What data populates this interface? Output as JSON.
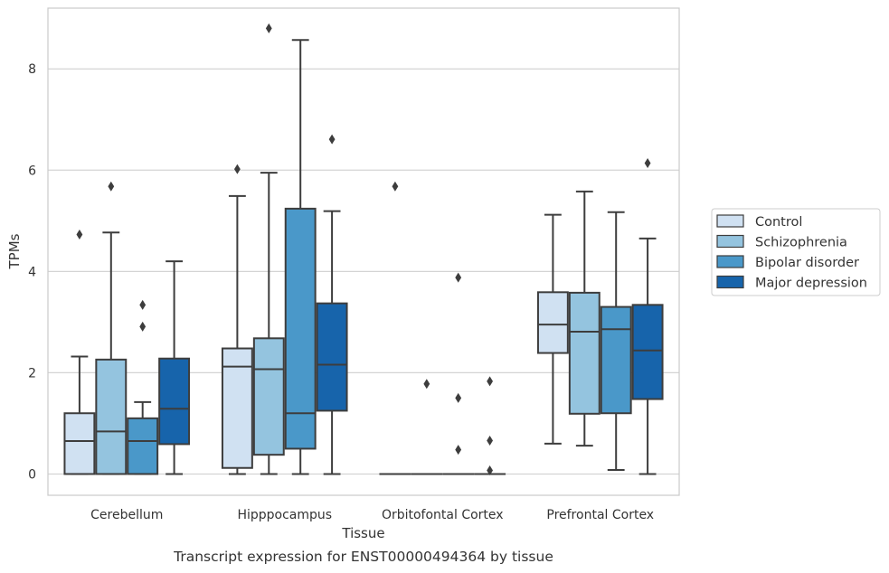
{
  "chart_data": {
    "type": "box",
    "title": "",
    "caption": "Transcript expression for ENST00000494364 by tissue",
    "xlabel": "Tissue",
    "ylabel": "TPMs",
    "ylim": [
      -0.42,
      9.2
    ],
    "yticks": [
      0,
      2,
      4,
      6,
      8
    ],
    "grid": "horizontal",
    "legend_position": "right",
    "categories": [
      "Cerebellum",
      "Hipppocampus",
      "Orbitofontal Cortex",
      "Prefrontal Cortex"
    ],
    "series": [
      {
        "name": "Control",
        "color": "#d0e1f2",
        "boxes": [
          {
            "whislo": 0,
            "q1": 0,
            "med": 0.65,
            "q3": 1.2,
            "whishi": 2.32,
            "fliers": [
              4.73
            ]
          },
          {
            "whislo": 0,
            "q1": 0.12,
            "med": 2.12,
            "q3": 2.48,
            "whishi": 5.49,
            "fliers": [
              6.02
            ]
          },
          {
            "whislo": 0,
            "q1": 0,
            "med": 0,
            "q3": 0,
            "whishi": 0,
            "fliers": [
              5.68
            ]
          },
          {
            "whislo": 0.6,
            "q1": 2.39,
            "med": 2.95,
            "q3": 3.59,
            "whishi": 5.12,
            "fliers": []
          }
        ]
      },
      {
        "name": "Schizophrenia",
        "color": "#94c4df",
        "boxes": [
          {
            "whislo": 0,
            "q1": 0,
            "med": 0.84,
            "q3": 2.26,
            "whishi": 4.77,
            "fliers": [
              5.68
            ]
          },
          {
            "whislo": 0,
            "q1": 0.38,
            "med": 2.07,
            "q3": 2.68,
            "whishi": 5.95,
            "fliers": [
              8.8
            ]
          },
          {
            "whislo": 0,
            "q1": 0,
            "med": 0,
            "q3": 0,
            "whishi": 0,
            "fliers": [
              1.78
            ]
          },
          {
            "whislo": 0.56,
            "q1": 1.19,
            "med": 2.81,
            "q3": 3.58,
            "whishi": 5.58,
            "fliers": []
          }
        ]
      },
      {
        "name": "Bipolar disorder",
        "color": "#4a98c9",
        "boxes": [
          {
            "whislo": 0,
            "q1": 0,
            "med": 0.65,
            "q3": 1.1,
            "whishi": 1.42,
            "fliers": [
              2.91,
              3.34
            ]
          },
          {
            "whislo": 0,
            "q1": 0.5,
            "med": 1.2,
            "q3": 5.24,
            "whishi": 8.57,
            "fliers": []
          },
          {
            "whislo": 0,
            "q1": 0,
            "med": 0,
            "q3": 0,
            "whishi": 0,
            "fliers": [
              0.48,
              1.5,
              3.88
            ]
          },
          {
            "whislo": 0.08,
            "q1": 1.2,
            "med": 2.86,
            "q3": 3.3,
            "whishi": 5.17,
            "fliers": []
          }
        ]
      },
      {
        "name": "Major depression",
        "color": "#1764ab",
        "boxes": [
          {
            "whislo": 0,
            "q1": 0.59,
            "med": 1.29,
            "q3": 2.28,
            "whishi": 4.2,
            "fliers": []
          },
          {
            "whislo": 0,
            "q1": 1.25,
            "med": 2.16,
            "q3": 3.37,
            "whishi": 5.19,
            "fliers": [
              6.61
            ]
          },
          {
            "whislo": 0,
            "q1": 0,
            "med": 0,
            "q3": 0,
            "whishi": 0,
            "fliers": [
              0.07,
              0.66,
              1.83
            ]
          },
          {
            "whislo": 0,
            "q1": 1.48,
            "med": 2.44,
            "q3": 3.34,
            "whishi": 4.65,
            "fliers": [
              6.14
            ]
          }
        ]
      }
    ]
  }
}
